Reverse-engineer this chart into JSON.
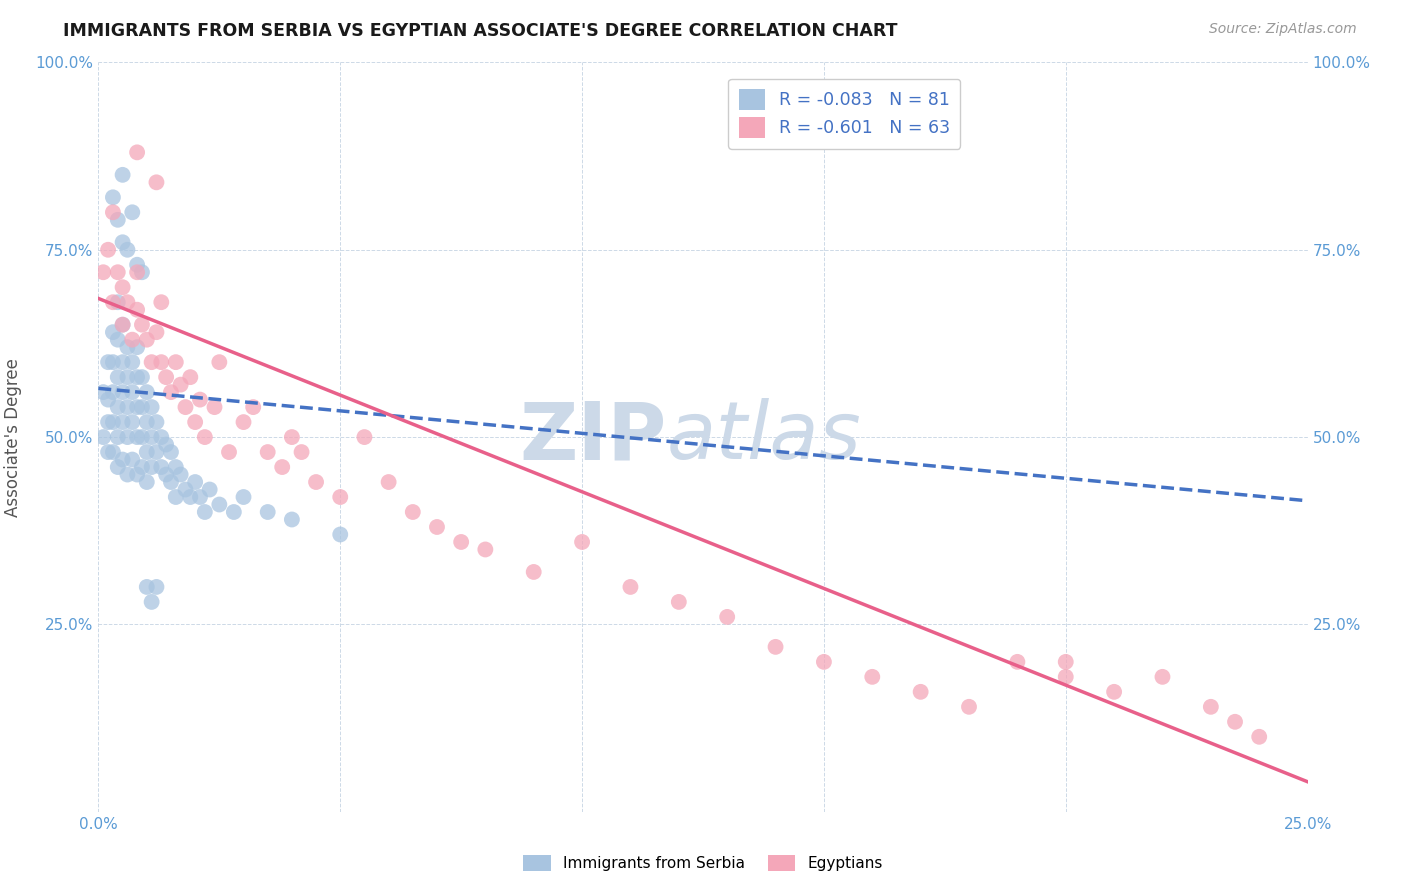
{
  "title": "IMMIGRANTS FROM SERBIA VS EGYPTIAN ASSOCIATE'S DEGREE CORRELATION CHART",
  "source": "Source: ZipAtlas.com",
  "ylabel": "Associate's Degree",
  "x_min": 0.0,
  "x_max": 0.25,
  "y_min": 0.0,
  "y_max": 1.0,
  "serbia_R": -0.083,
  "serbia_N": 81,
  "egypt_R": -0.601,
  "egypt_N": 63,
  "serbia_color": "#a8c4e0",
  "egypt_color": "#f4a7b9",
  "serbia_line_color": "#4472c4",
  "egypt_line_color": "#e8608a",
  "watermark_color": "#ccd9e8",
  "serbia_x": [
    0.001,
    0.001,
    0.002,
    0.002,
    0.002,
    0.002,
    0.003,
    0.003,
    0.003,
    0.003,
    0.003,
    0.004,
    0.004,
    0.004,
    0.004,
    0.004,
    0.004,
    0.005,
    0.005,
    0.005,
    0.005,
    0.005,
    0.006,
    0.006,
    0.006,
    0.006,
    0.006,
    0.007,
    0.007,
    0.007,
    0.007,
    0.008,
    0.008,
    0.008,
    0.008,
    0.008,
    0.009,
    0.009,
    0.009,
    0.009,
    0.01,
    0.01,
    0.01,
    0.01,
    0.011,
    0.011,
    0.011,
    0.012,
    0.012,
    0.013,
    0.013,
    0.014,
    0.014,
    0.015,
    0.015,
    0.016,
    0.016,
    0.017,
    0.018,
    0.019,
    0.02,
    0.021,
    0.022,
    0.023,
    0.025,
    0.028,
    0.03,
    0.035,
    0.04,
    0.05,
    0.003,
    0.004,
    0.005,
    0.005,
    0.006,
    0.007,
    0.008,
    0.009,
    0.01,
    0.011,
    0.012
  ],
  "serbia_y": [
    0.56,
    0.5,
    0.6,
    0.55,
    0.52,
    0.48,
    0.64,
    0.6,
    0.56,
    0.52,
    0.48,
    0.68,
    0.63,
    0.58,
    0.54,
    0.5,
    0.46,
    0.65,
    0.6,
    0.56,
    0.52,
    0.47,
    0.62,
    0.58,
    0.54,
    0.5,
    0.45,
    0.6,
    0.56,
    0.52,
    0.47,
    0.62,
    0.58,
    0.54,
    0.5,
    0.45,
    0.58,
    0.54,
    0.5,
    0.46,
    0.56,
    0.52,
    0.48,
    0.44,
    0.54,
    0.5,
    0.46,
    0.52,
    0.48,
    0.5,
    0.46,
    0.49,
    0.45,
    0.48,
    0.44,
    0.46,
    0.42,
    0.45,
    0.43,
    0.42,
    0.44,
    0.42,
    0.4,
    0.43,
    0.41,
    0.4,
    0.42,
    0.4,
    0.39,
    0.37,
    0.82,
    0.79,
    0.76,
    0.85,
    0.75,
    0.8,
    0.73,
    0.72,
    0.3,
    0.28,
    0.3
  ],
  "egypt_x": [
    0.001,
    0.002,
    0.003,
    0.003,
    0.004,
    0.005,
    0.005,
    0.006,
    0.007,
    0.008,
    0.008,
    0.009,
    0.01,
    0.011,
    0.012,
    0.013,
    0.013,
    0.014,
    0.015,
    0.016,
    0.017,
    0.018,
    0.019,
    0.02,
    0.021,
    0.022,
    0.024,
    0.025,
    0.027,
    0.03,
    0.032,
    0.035,
    0.038,
    0.04,
    0.042,
    0.045,
    0.05,
    0.055,
    0.06,
    0.065,
    0.07,
    0.075,
    0.08,
    0.09,
    0.1,
    0.11,
    0.12,
    0.13,
    0.14,
    0.15,
    0.16,
    0.17,
    0.18,
    0.19,
    0.2,
    0.21,
    0.22,
    0.23,
    0.235,
    0.24,
    0.008,
    0.012,
    0.2
  ],
  "egypt_y": [
    0.72,
    0.75,
    0.68,
    0.8,
    0.72,
    0.7,
    0.65,
    0.68,
    0.63,
    0.67,
    0.72,
    0.65,
    0.63,
    0.6,
    0.64,
    0.6,
    0.68,
    0.58,
    0.56,
    0.6,
    0.57,
    0.54,
    0.58,
    0.52,
    0.55,
    0.5,
    0.54,
    0.6,
    0.48,
    0.52,
    0.54,
    0.48,
    0.46,
    0.5,
    0.48,
    0.44,
    0.42,
    0.5,
    0.44,
    0.4,
    0.38,
    0.36,
    0.35,
    0.32,
    0.36,
    0.3,
    0.28,
    0.26,
    0.22,
    0.2,
    0.18,
    0.16,
    0.14,
    0.2,
    0.18,
    0.16,
    0.18,
    0.14,
    0.12,
    0.1,
    0.88,
    0.84,
    0.2
  ]
}
